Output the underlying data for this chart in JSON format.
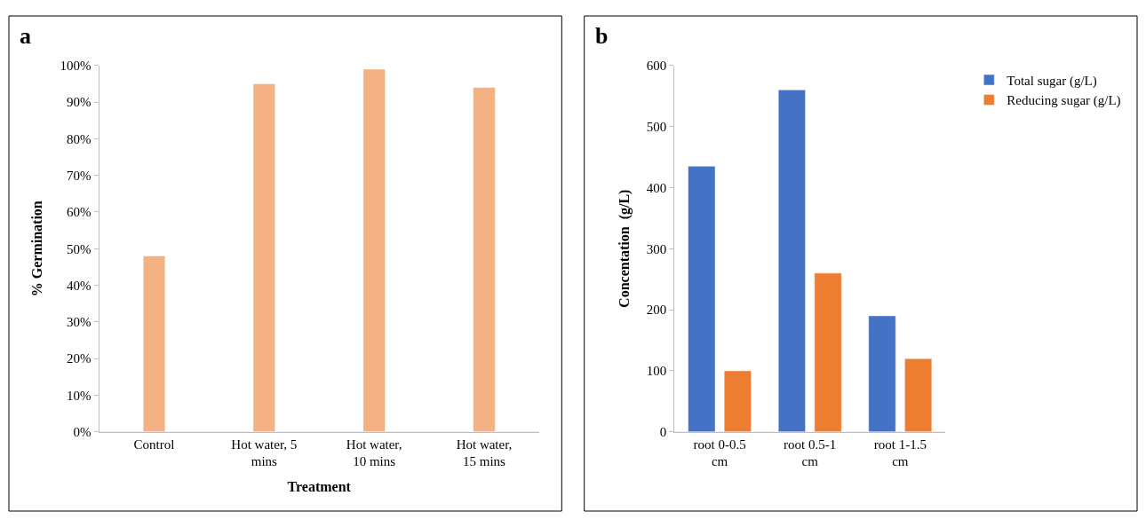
{
  "chart_data": [
    {
      "type": "bar",
      "title": "a",
      "xlabel": "Treatment",
      "ylabel": "% Germination",
      "categories": [
        "Control",
        "Hot water, 5 mins",
        "Hot water, 10 mins",
        "Hot water, 15 mins"
      ],
      "values": [
        48,
        95,
        99,
        94
      ],
      "color": "#f4b183",
      "ylim": [
        0,
        100
      ],
      "yticks": [
        {
          "value": 0,
          "label": "0%"
        },
        {
          "value": 10,
          "label": "10%"
        },
        {
          "value": 20,
          "label": "20%"
        },
        {
          "value": 30,
          "label": "30%"
        },
        {
          "value": 40,
          "label": "40%"
        },
        {
          "value": 50,
          "label": "50%"
        },
        {
          "value": 60,
          "label": "60%"
        },
        {
          "value": 70,
          "label": "70%"
        },
        {
          "value": 80,
          "label": "80%"
        },
        {
          "value": 90,
          "label": "90%"
        },
        {
          "value": 100,
          "label": "100%"
        }
      ],
      "grid": false,
      "legend": false
    },
    {
      "type": "bar",
      "title": "b",
      "ylabel": "Concentation  (g/L)",
      "categories": [
        "root 0-0.5 cm",
        "root 0.5-1 cm",
        "root 1-1.5 cm"
      ],
      "series": [
        {
          "name": "Total sugar (g/L)",
          "color": "#4472c4",
          "values": [
            435,
            560,
            190
          ]
        },
        {
          "name": "Reducing sugar (g/L)",
          "color": "#ed7d31",
          "values": [
            100,
            260,
            120
          ]
        }
      ],
      "ylim": [
        0,
        600
      ],
      "yticks": [
        0,
        100,
        200,
        300,
        400,
        500,
        600
      ],
      "grid": false,
      "legend": "top right"
    }
  ]
}
